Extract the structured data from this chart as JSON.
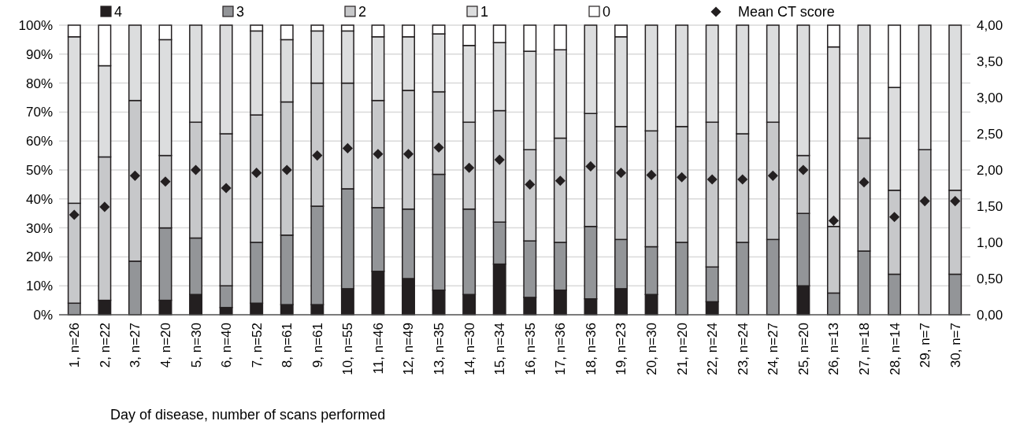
{
  "chart_data": {
    "type": "bar",
    "stacked": true,
    "xlabel": "Day of disease, number of scans performed",
    "categories": [
      "1, n=26",
      "2, n=22",
      "3, n=27",
      "4, n=20",
      "5, n=30",
      "6, n=40",
      "7, n=52",
      "8, n=61",
      "9, n=61",
      "10, n=55",
      "11, n=46",
      "12, n=49",
      "13, n=35",
      "14, n=30",
      "15, n=34",
      "16, n=35",
      "17, n=36",
      "18, n=36",
      "19, n=23",
      "20, n=30",
      "21, n=20",
      "22, n=24",
      "23, n=24",
      "24, n=27",
      "25, n=20",
      "26, n=13",
      "27, n=18",
      "28, n=14",
      "29, n=7",
      "30, n=7"
    ],
    "series": [
      {
        "name": "4",
        "color": "#231f20",
        "values": [
          0,
          5,
          0,
          5,
          7,
          2.5,
          4,
          3.5,
          3.5,
          9,
          15,
          12.5,
          8.5,
          7,
          17.5,
          6,
          8.5,
          5.5,
          9,
          7,
          0,
          4.5,
          0,
          0,
          10,
          0,
          0,
          0,
          0,
          0
        ]
      },
      {
        "name": "3",
        "color": "#939598",
        "values": [
          4,
          0,
          18.5,
          25,
          19.5,
          7.5,
          21,
          24,
          34,
          34.5,
          22,
          24,
          40,
          29.5,
          14.5,
          19.5,
          16.5,
          25,
          17,
          16.5,
          25,
          12,
          25,
          26,
          25,
          7.5,
          22,
          14,
          0,
          14
        ]
      },
      {
        "name": "2",
        "color": "#c7c8ca",
        "values": [
          34.5,
          49.5,
          55.5,
          25,
          40,
          52.5,
          44,
          46,
          42.5,
          36.5,
          37,
          41,
          28.5,
          30,
          38.5,
          31.5,
          36,
          39,
          39,
          40,
          40,
          50,
          37.5,
          40.5,
          20,
          23,
          39,
          29,
          57,
          29
        ]
      },
      {
        "name": "1",
        "color": "#dcddde",
        "values": [
          57.5,
          31.5,
          26,
          40,
          33.5,
          37.5,
          29,
          21.5,
          18,
          18,
          22,
          18.5,
          20,
          26.5,
          23.5,
          34,
          30.5,
          30.5,
          31,
          36.5,
          35,
          33.5,
          37.5,
          33.5,
          45,
          62,
          39,
          35.5,
          43,
          57
        ]
      },
      {
        "name": "0",
        "color": "#ffffff",
        "values": [
          4,
          14,
          0,
          5,
          0,
          0,
          2,
          5,
          2,
          2,
          4,
          4,
          3,
          7,
          6,
          9,
          8.5,
          0,
          4,
          0,
          0,
          0,
          0,
          0,
          0,
          7.5,
          0,
          21.5,
          0,
          0
        ]
      },
      {
        "name": "Mean CT score",
        "type": "scatter",
        "axis": "y2",
        "marker": "diamond",
        "color": "#231f20",
        "values": [
          1.38,
          1.49,
          1.92,
          1.84,
          2.0,
          1.75,
          1.96,
          2.0,
          2.2,
          2.3,
          2.22,
          2.22,
          2.31,
          2.03,
          2.14,
          1.8,
          1.85,
          2.05,
          1.96,
          1.93,
          1.9,
          1.87,
          1.87,
          1.92,
          2.0,
          1.3,
          1.83,
          1.35,
          1.57,
          1.57
        ]
      }
    ],
    "ylim": [
      0,
      100
    ],
    "yticks": [
      {
        "value": 0,
        "label": "0%"
      },
      {
        "value": 10,
        "label": "10%"
      },
      {
        "value": 20,
        "label": "20%"
      },
      {
        "value": 30,
        "label": "30%"
      },
      {
        "value": 40,
        "label": "40%"
      },
      {
        "value": 50,
        "label": "50%"
      },
      {
        "value": 60,
        "label": "60%"
      },
      {
        "value": 70,
        "label": "70%"
      },
      {
        "value": 80,
        "label": "80%"
      },
      {
        "value": 90,
        "label": "90%"
      },
      {
        "value": 100,
        "label": "100%"
      }
    ],
    "y2lim": [
      0,
      4
    ],
    "y2ticks": [
      {
        "value": 0,
        "label": "0,00"
      },
      {
        "value": 0.5,
        "label": "0,50"
      },
      {
        "value": 1,
        "label": "1,00"
      },
      {
        "value": 1.5,
        "label": "1,50"
      },
      {
        "value": 2,
        "label": "2,00"
      },
      {
        "value": 2.5,
        "label": "2,50"
      },
      {
        "value": 3,
        "label": "3,00"
      },
      {
        "value": 3.5,
        "label": "3,50"
      },
      {
        "value": 4,
        "label": "4,00"
      }
    ],
    "grid": "y",
    "legend": "top"
  }
}
